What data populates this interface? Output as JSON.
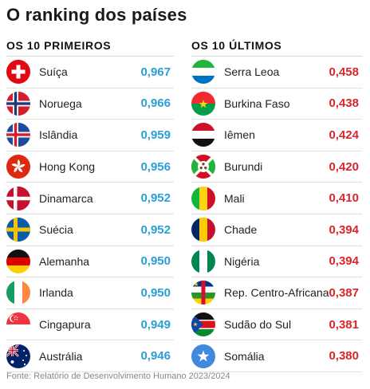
{
  "title": "O ranking dos países",
  "top": {
    "heading": "OS 10 PRIMEIROS",
    "rows": [
      {
        "country": "Suíça",
        "value": "0,967",
        "flag": "switzerland-flag-icon"
      },
      {
        "country": "Noruega",
        "value": "0,966",
        "flag": "norway-flag-icon"
      },
      {
        "country": "Islândia",
        "value": "0,959",
        "flag": "iceland-flag-icon"
      },
      {
        "country": "Hong Kong",
        "value": "0,956",
        "flag": "hong-kong-flag-icon"
      },
      {
        "country": "Dinamarca",
        "value": "0,952",
        "flag": "denmark-flag-icon"
      },
      {
        "country": "Suécia",
        "value": "0,952",
        "flag": "sweden-flag-icon"
      },
      {
        "country": "Alemanha",
        "value": "0,950",
        "flag": "germany-flag-icon"
      },
      {
        "country": "Irlanda",
        "value": "0,950",
        "flag": "ireland-flag-icon"
      },
      {
        "country": "Cingapura",
        "value": "0,949",
        "flag": "singapore-flag-icon"
      },
      {
        "country": "Austrália",
        "value": "0,946",
        "flag": "australia-flag-icon"
      }
    ]
  },
  "bottom": {
    "heading": "OS 10 ÚLTIMOS",
    "rows": [
      {
        "country": "Serra Leoa",
        "value": "0,458",
        "flag": "sierra-leone-flag-icon"
      },
      {
        "country": "Burkina Faso",
        "value": "0,438",
        "flag": "burkina-faso-flag-icon"
      },
      {
        "country": "Iêmen",
        "value": "0,424",
        "flag": "yemen-flag-icon"
      },
      {
        "country": "Burundi",
        "value": "0,420",
        "flag": "burundi-flag-icon"
      },
      {
        "country": "Mali",
        "value": "0,410",
        "flag": "mali-flag-icon"
      },
      {
        "country": "Chade",
        "value": "0,394",
        "flag": "chad-flag-icon"
      },
      {
        "country": "Nigéria",
        "value": "0,394",
        "flag": "nigeria-flag-icon"
      },
      {
        "country": "Rep. Centro-Africana",
        "value": "0,387",
        "flag": "central-african-republic-flag-icon"
      },
      {
        "country": "Sudão do Sul",
        "value": "0,381",
        "flag": "south-sudan-flag-icon"
      },
      {
        "country": "Somália",
        "value": "0,380",
        "flag": "somalia-flag-icon"
      }
    ]
  },
  "source": "Fonte: Relatório de Desenvolvimento Humano 2023/2024",
  "colors": {
    "top_value": "#2a9fd6",
    "bottom_value": "#d8262b"
  }
}
